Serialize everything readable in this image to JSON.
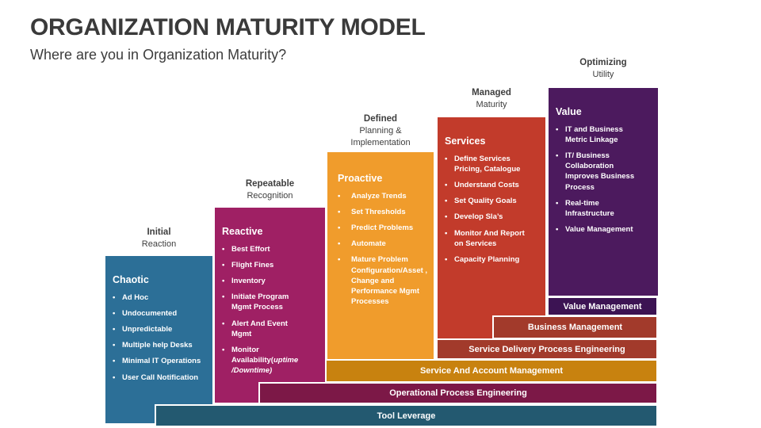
{
  "slide": {
    "title": "ORGANIZATION MATURITY MODEL",
    "subtitle": "Where are you in Organization Maturity?",
    "background_color": "#FFFFFF",
    "heading_text_color": "#3A3A3A"
  },
  "columns": [
    {
      "stage": {
        "bold": "Initial",
        "sub": "Reaction"
      },
      "heading": "Chaotic",
      "color": "#2C6F97",
      "bullets": [
        "Ad Hoc",
        "Undocumented",
        "Unpredictable",
        "Multiple help Desks",
        "Minimal IT Operations",
        "User Call Notification"
      ]
    },
    {
      "stage": {
        "bold": "Repeatable",
        "sub": "Recognition"
      },
      "heading": "Reactive",
      "color": "#9F2064",
      "bullets": [
        "Best Effort",
        "Flight Fines",
        "Inventory",
        "Initiate Program Mgmt Process",
        "Alert And Event Mgmt",
        {
          "text": "Monitor Availability(",
          "italic": "uptime /Downtime)"
        }
      ]
    },
    {
      "stage": {
        "bold": "Defined",
        "sub": "Planning &\nImplementation"
      },
      "heading": "Proactive",
      "color": "#F09C2C",
      "bullets": [
        "Analyze Trends",
        "Set Thresholds",
        "Predict Problems",
        "Automate",
        "Mature Problem Configuration/Asset , Change and Performance Mgmt  Processes"
      ]
    },
    {
      "stage": {
        "bold": "Managed",
        "sub": "Maturity"
      },
      "heading": "Services",
      "color": "#C23B2B",
      "bullets": [
        "Define Services Pricing, Catalogue",
        "Understand Costs",
        "Set Quality Goals",
        "Develop Sla’s",
        "Monitor And Report on Services",
        "Capacity Planning"
      ]
    },
    {
      "stage": {
        "bold": "Optimizing",
        "sub": "Utility"
      },
      "heading": "Value",
      "color": "#4C1A5E",
      "bullets": [
        "IT and Business Metric Linkage",
        "IT/ Business Collaboration Improves Business Process",
        "Real-time Infrastructure",
        "Value Management"
      ]
    }
  ],
  "bars": [
    {
      "label": "Value Management",
      "color": "#3C1353"
    },
    {
      "label": "Business Management",
      "color": "#A23A2B"
    },
    {
      "label": "Service Delivery Process Engineering",
      "color": "#A23A2B"
    },
    {
      "label": "Service And Account Management",
      "color": "#C8820F"
    },
    {
      "label": "Operational Process Engineering",
      "color": "#7C1847"
    },
    {
      "label": "Tool Leverage",
      "color": "#235970"
    }
  ]
}
